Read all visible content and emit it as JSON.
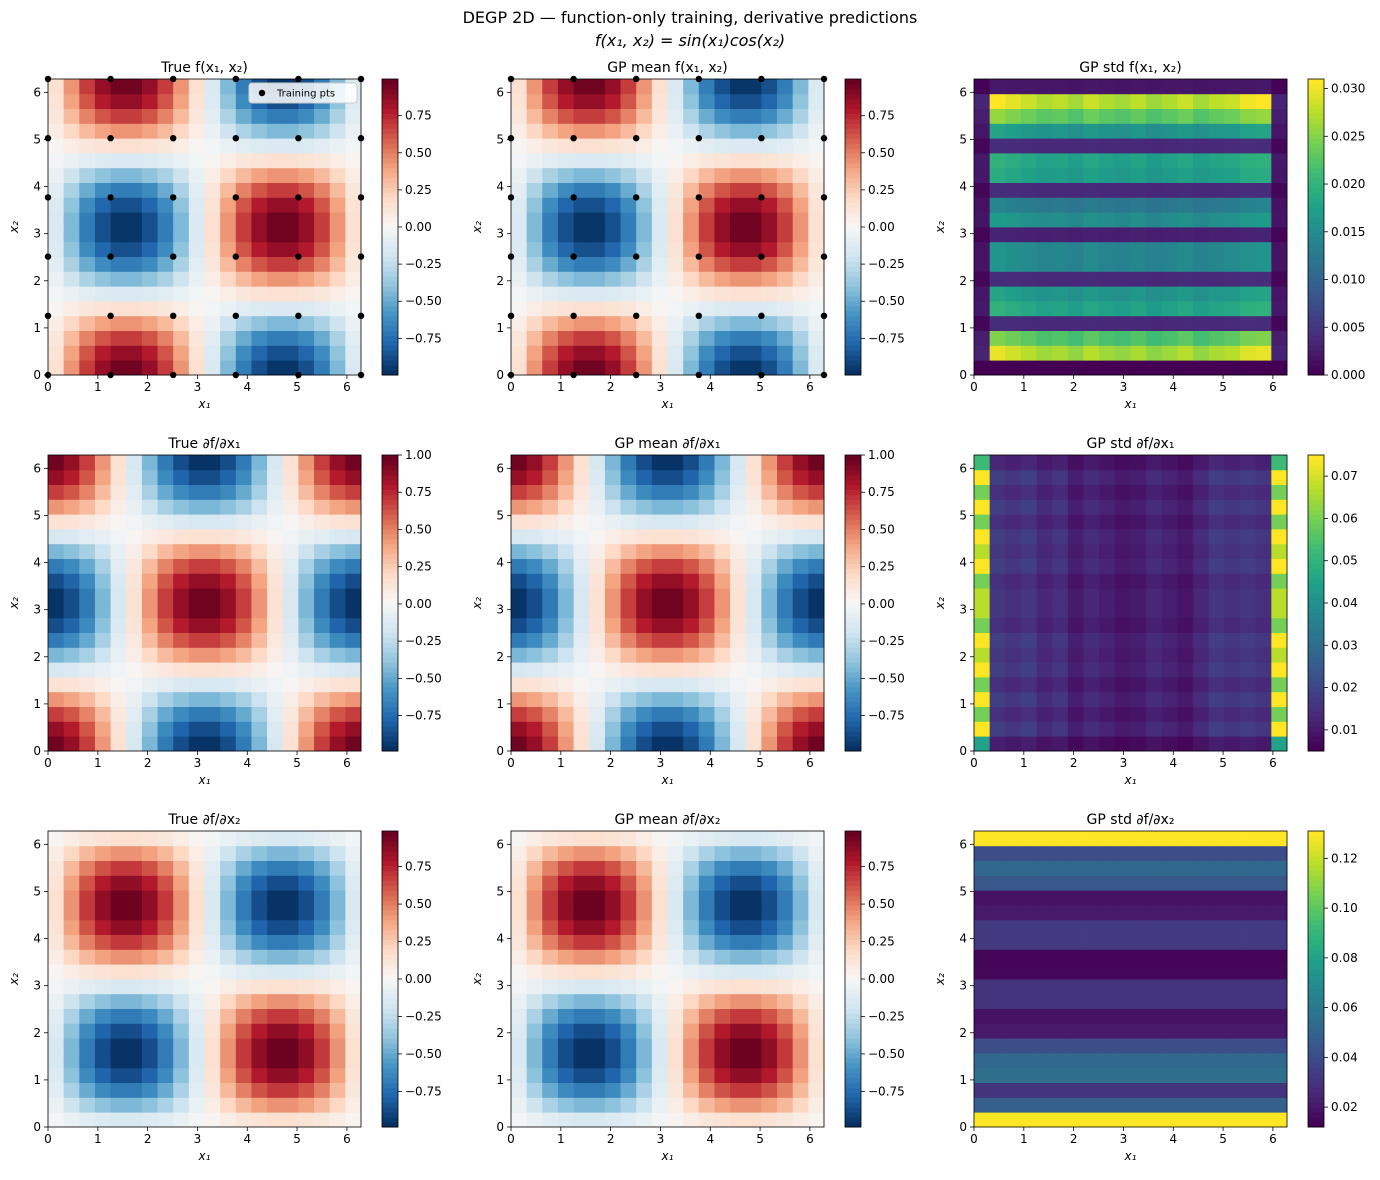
{
  "suptitle_line1": "DEGP 2D — function-only training, derivative predictions",
  "suptitle_line2": "f(x₁, x₂) = sin(x₁)cos(x₂)",
  "legend_label": "Training pts",
  "xlabel": "x₁",
  "ylabel": "x₂",
  "colors": {
    "diverging": "RdBu_r",
    "sequential": "viridis",
    "points": "#000000"
  },
  "chart_data": [
    {
      "type": "heatmap",
      "title": "True f(x₁, x₂)",
      "field": "f",
      "grid": 20,
      "cmap": "RdBu_r",
      "xlim": [
        0,
        6.283
      ],
      "ylim": [
        0,
        6.283
      ],
      "xticks": [
        0,
        1,
        2,
        3,
        4,
        5,
        6
      ],
      "yticks": [
        0,
        1,
        2,
        3,
        4,
        5,
        6
      ],
      "clim": [
        -0.997,
        0.997
      ],
      "cbar_ticks": [
        0.75,
        0.5,
        0.25,
        0.0,
        -0.25,
        -0.5,
        -0.75
      ],
      "cbar_labels": [
        "0.75",
        "0.50",
        "0.25",
        "0.00",
        "−0.25",
        "−0.50",
        "−0.75"
      ],
      "training_points": true,
      "legend": "upper right"
    },
    {
      "type": "heatmap",
      "title": "GP mean f(x₁, x₂)",
      "field": "f",
      "grid": 20,
      "cmap": "RdBu_r",
      "xlim": [
        0,
        6.283
      ],
      "ylim": [
        0,
        6.283
      ],
      "xticks": [
        0,
        1,
        2,
        3,
        4,
        5,
        6
      ],
      "yticks": [
        0,
        1,
        2,
        3,
        4,
        5,
        6
      ],
      "clim": [
        -0.997,
        0.997
      ],
      "cbar_ticks": [
        0.75,
        0.5,
        0.25,
        0.0,
        -0.25,
        -0.5,
        -0.75
      ],
      "cbar_labels": [
        "0.75",
        "0.50",
        "0.25",
        "0.00",
        "−0.25",
        "−0.50",
        "−0.75"
      ],
      "training_points": true
    },
    {
      "type": "heatmap",
      "title": "GP std f(x₁, x₂)",
      "field": "std_f",
      "grid": 20,
      "cmap": "viridis",
      "xlim": [
        0,
        6.283
      ],
      "ylim": [
        0,
        6.283
      ],
      "xticks": [
        0,
        1,
        2,
        3,
        4,
        5,
        6
      ],
      "yticks": [
        0,
        1,
        2,
        3,
        4,
        5,
        6
      ],
      "clim": [
        0,
        0.031
      ],
      "cbar_ticks": [
        0.03,
        0.025,
        0.02,
        0.015,
        0.01,
        0.005,
        0.0
      ],
      "cbar_labels": [
        "0.030",
        "0.025",
        "0.020",
        "0.015",
        "0.010",
        "0.005",
        "0.000"
      ],
      "row_profile": [
        0.0,
        0.03,
        0.025,
        0.004,
        0.02,
        0.018,
        0.004,
        0.016,
        0.016,
        0.003,
        0.017,
        0.014,
        0.004,
        0.019,
        0.02,
        0.004,
        0.018,
        0.026,
        0.031,
        0.002
      ],
      "col_profile": [
        0.0,
        1.0,
        0.96,
        0.92,
        0.88,
        0.9,
        0.86,
        0.92,
        0.88,
        0.86,
        0.9,
        0.85,
        0.88,
        0.92,
        0.86,
        0.9,
        0.92,
        0.98,
        1.0,
        0.0
      ]
    },
    {
      "type": "heatmap",
      "title": "True ∂f/∂x₁",
      "field": "dfdx1",
      "grid": 20,
      "cmap": "RdBu_r",
      "xlim": [
        0,
        6.283
      ],
      "ylim": [
        0,
        6.283
      ],
      "xticks": [
        0,
        1,
        2,
        3,
        4,
        5,
        6
      ],
      "yticks": [
        0,
        1,
        2,
        3,
        4,
        5,
        6
      ],
      "clim": [
        -0.9877,
        1.0
      ],
      "cbar_ticks": [
        1.0,
        0.75,
        0.5,
        0.25,
        0.0,
        -0.25,
        -0.5,
        -0.75
      ],
      "cbar_labels": [
        "1.00",
        "0.75",
        "0.50",
        "0.25",
        "0.00",
        "−0.25",
        "−0.50",
        "−0.75"
      ]
    },
    {
      "type": "heatmap",
      "title": "GP mean ∂f/∂x₁",
      "field": "dfdx1",
      "grid": 20,
      "cmap": "RdBu_r",
      "xlim": [
        0,
        6.283
      ],
      "ylim": [
        0,
        6.283
      ],
      "xticks": [
        0,
        1,
        2,
        3,
        4,
        5,
        6
      ],
      "yticks": [
        0,
        1,
        2,
        3,
        4,
        5,
        6
      ],
      "clim": [
        -0.9877,
        1.0
      ],
      "cbar_ticks": [
        1.0,
        0.75,
        0.5,
        0.25,
        0.0,
        -0.25,
        -0.5,
        -0.75
      ],
      "cbar_labels": [
        "1.00",
        "0.75",
        "0.50",
        "0.25",
        "0.00",
        "−0.25",
        "−0.50",
        "−0.75"
      ]
    },
    {
      "type": "heatmap",
      "title": "GP std ∂f/∂x₁",
      "field": "std_dx1",
      "grid": 20,
      "cmap": "viridis",
      "xlim": [
        0,
        6.283
      ],
      "ylim": [
        0,
        6.283
      ],
      "xticks": [
        0,
        1,
        2,
        3,
        4,
        5,
        6
      ],
      "yticks": [
        0,
        1,
        2,
        3,
        4,
        5,
        6
      ],
      "clim": [
        0.005,
        0.075
      ],
      "cbar_ticks": [
        0.07,
        0.06,
        0.05,
        0.04,
        0.03,
        0.02,
        0.01
      ],
      "cbar_labels": [
        "0.07",
        "0.06",
        "0.05",
        "0.04",
        "0.03",
        "0.02",
        "0.01"
      ],
      "col_profile": [
        0.075,
        0.018,
        0.016,
        0.018,
        0.014,
        0.016,
        0.011,
        0.014,
        0.012,
        0.01,
        0.011,
        0.014,
        0.012,
        0.01,
        0.014,
        0.018,
        0.016,
        0.018,
        0.016,
        0.075
      ],
      "row_profile": [
        0.6,
        1.0,
        0.8,
        1.0,
        0.8,
        1.0,
        0.9,
        1.0,
        0.8,
        0.9,
        0.9,
        0.8,
        1.0,
        0.9,
        1.0,
        0.8,
        1.0,
        0.8,
        1.0,
        0.7
      ]
    },
    {
      "type": "heatmap",
      "title": "True ∂f/∂x₂",
      "field": "dfdx2",
      "grid": 20,
      "cmap": "RdBu_r",
      "xlim": [
        0,
        6.283
      ],
      "ylim": [
        0,
        6.283
      ],
      "xticks": [
        0,
        1,
        2,
        3,
        4,
        5,
        6
      ],
      "yticks": [
        0,
        1,
        2,
        3,
        4,
        5,
        6
      ],
      "clim": [
        -0.9877,
        0.9877
      ],
      "cbar_ticks": [
        0.75,
        0.5,
        0.25,
        0.0,
        -0.25,
        -0.5,
        -0.75
      ],
      "cbar_labels": [
        "0.75",
        "0.50",
        "0.25",
        "0.00",
        "−0.25",
        "−0.50",
        "−0.75"
      ]
    },
    {
      "type": "heatmap",
      "title": "GP mean ∂f/∂x₂",
      "field": "dfdx2",
      "grid": 20,
      "cmap": "RdBu_r",
      "xlim": [
        0,
        6.283
      ],
      "ylim": [
        0,
        6.283
      ],
      "xticks": [
        0,
        1,
        2,
        3,
        4,
        5,
        6
      ],
      "yticks": [
        0,
        1,
        2,
        3,
        4,
        5,
        6
      ],
      "clim": [
        -0.9877,
        0.9877
      ],
      "cbar_ticks": [
        0.75,
        0.5,
        0.25,
        0.0,
        -0.25,
        -0.5,
        -0.75
      ],
      "cbar_labels": [
        "0.75",
        "0.50",
        "0.25",
        "0.00",
        "−0.25",
        "−0.50",
        "−0.75"
      ]
    },
    {
      "type": "heatmap",
      "title": "GP std ∂f/∂x₂",
      "field": "std_dx2",
      "grid": 20,
      "cmap": "viridis",
      "xlim": [
        0,
        6.283
      ],
      "ylim": [
        0,
        6.283
      ],
      "xticks": [
        0,
        1,
        2,
        3,
        4,
        5,
        6
      ],
      "yticks": [
        0,
        1,
        2,
        3,
        4,
        5,
        6
      ],
      "clim": [
        0.012,
        0.131
      ],
      "cbar_ticks": [
        0.12,
        0.1,
        0.08,
        0.06,
        0.04,
        0.02
      ],
      "cbar_labels": [
        "0.12",
        "0.10",
        "0.08",
        "0.06",
        "0.04",
        "0.02"
      ],
      "row_profile": [
        0.131,
        0.048,
        0.03,
        0.055,
        0.052,
        0.04,
        0.02,
        0.018,
        0.03,
        0.03,
        0.014,
        0.013,
        0.032,
        0.032,
        0.02,
        0.018,
        0.045,
        0.052,
        0.04,
        0.131
      ]
    }
  ]
}
